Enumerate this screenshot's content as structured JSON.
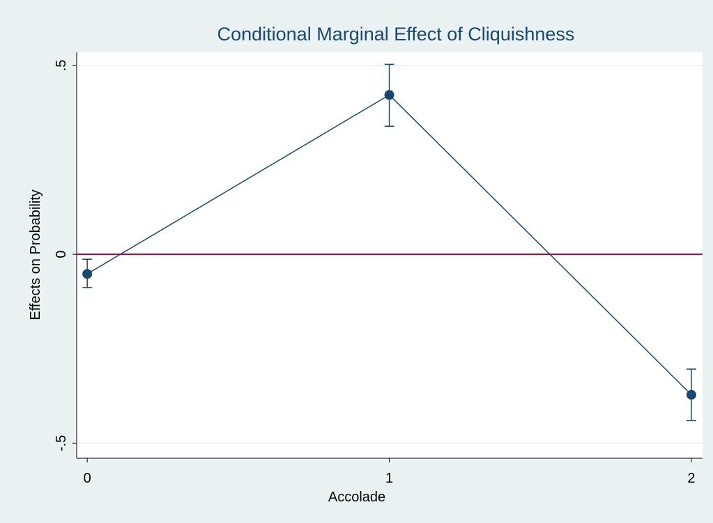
{
  "chart_data": {
    "type": "line",
    "title": "Conditional Marginal Effect of Cliquishness",
    "x_label": "Accolade",
    "y_label": "Effects on Probability",
    "x": [
      0,
      1,
      2
    ],
    "values": [
      -0.052,
      0.422,
      -0.372
    ],
    "lower": [
      -0.088,
      0.339,
      -0.44
    ],
    "upper": [
      -0.013,
      0.503,
      -0.304
    ],
    "color": "#1a476f",
    "xlim": [
      -0.035,
      2.037
    ],
    "xticks": [
      0,
      1,
      2
    ],
    "ylim": [
      -0.54,
      0.535
    ],
    "yticks": [
      {
        "value": 0.5,
        "label": ".5"
      },
      0,
      {
        "value": -0.5,
        "label": "-.5"
      }
    ],
    "grid": true,
    "yline": 0,
    "yline_color": "#90153b"
  }
}
